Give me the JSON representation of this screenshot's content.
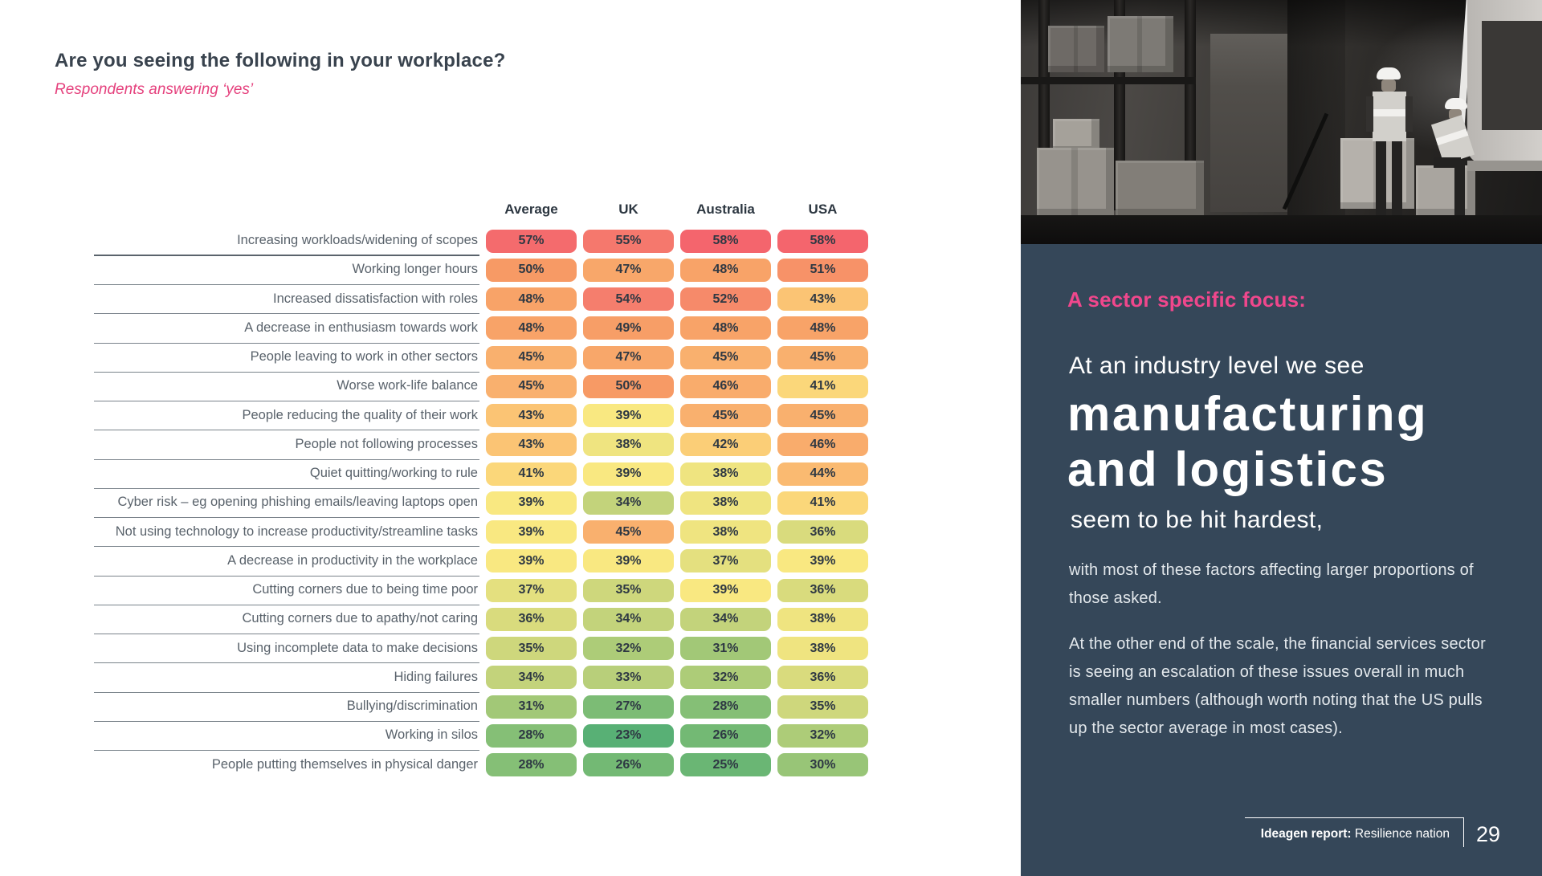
{
  "survey": {
    "title": "Are you seeing the following in your workplace?",
    "subtitle": "Respondents answering ‘yes’"
  },
  "chart_data": {
    "type": "heatmap",
    "title": "Are you seeing the following in your workplace?",
    "subtitle": "Respondents answering ‘yes’",
    "value_suffix": "%",
    "columns": [
      "Average",
      "UK",
      "Australia",
      "USA"
    ],
    "rows": [
      {
        "label": "Increasing workloads/widening of scopes",
        "values": [
          57,
          55,
          58,
          58
        ]
      },
      {
        "label": "Working longer hours",
        "values": [
          50,
          47,
          48,
          51
        ]
      },
      {
        "label": "Increased dissatisfaction with roles",
        "values": [
          48,
          54,
          52,
          43
        ]
      },
      {
        "label": "A decrease in enthusiasm towards work",
        "values": [
          48,
          49,
          48,
          48
        ]
      },
      {
        "label": "People leaving to work in other sectors",
        "values": [
          45,
          47,
          45,
          45
        ]
      },
      {
        "label": "Worse work-life balance",
        "values": [
          45,
          50,
          46,
          41
        ]
      },
      {
        "label": "People reducing the quality of their work",
        "values": [
          43,
          39,
          45,
          45
        ]
      },
      {
        "label": "People not following processes",
        "values": [
          43,
          38,
          42,
          46
        ]
      },
      {
        "label": "Quiet quitting/working to rule",
        "values": [
          41,
          39,
          38,
          44
        ]
      },
      {
        "label": "Cyber risk – eg opening phishing emails/leaving laptops open",
        "values": [
          39,
          34,
          38,
          41
        ]
      },
      {
        "label": "Not using technology to increase productivity/streamline tasks",
        "values": [
          39,
          45,
          38,
          36
        ]
      },
      {
        "label": "A decrease in productivity in the workplace",
        "values": [
          39,
          39,
          37,
          39
        ]
      },
      {
        "label": "Cutting corners due to being time poor",
        "values": [
          37,
          35,
          39,
          36
        ]
      },
      {
        "label": "Cutting corners due to apathy/not caring",
        "values": [
          36,
          34,
          34,
          38
        ]
      },
      {
        "label": "Using incomplete data to make decisions",
        "values": [
          35,
          32,
          31,
          38
        ]
      },
      {
        "label": "Hiding failures",
        "values": [
          34,
          33,
          32,
          36
        ]
      },
      {
        "label": "Bullying/discrimination",
        "values": [
          31,
          27,
          28,
          35
        ]
      },
      {
        "label": "Working in silos",
        "values": [
          28,
          23,
          26,
          32
        ]
      },
      {
        "label": "People putting themselves in physical danger",
        "values": [
          28,
          26,
          25,
          30
        ]
      }
    ],
    "color_scale": [
      {
        "value": 23,
        "color": "#58b075"
      },
      {
        "value": 26,
        "color": "#73b974"
      },
      {
        "value": 28,
        "color": "#85bf76"
      },
      {
        "value": 31,
        "color": "#a2c877"
      },
      {
        "value": 34,
        "color": "#c3d37b"
      },
      {
        "value": 36,
        "color": "#d9db7d"
      },
      {
        "value": 38,
        "color": "#efe480"
      },
      {
        "value": 39,
        "color": "#f9e881"
      },
      {
        "value": 41,
        "color": "#fbd77a"
      },
      {
        "value": 43,
        "color": "#fbc474"
      },
      {
        "value": 45,
        "color": "#f9b06e"
      },
      {
        "value": 47,
        "color": "#f8a76a"
      },
      {
        "value": 50,
        "color": "#f79a65"
      },
      {
        "value": 52,
        "color": "#f68a6a"
      },
      {
        "value": 54,
        "color": "#f57e6d"
      },
      {
        "value": 58,
        "color": "#f4656d"
      }
    ],
    "legend_position": "none",
    "grid": "row-separators-under-labels"
  },
  "side_panel": {
    "eyebrow": "A sector specific focus:",
    "lead_top": "At an industry level we see",
    "headline_line_1": "manufacturing",
    "headline_line_2": "and logistics",
    "lead_bottom": "seem to be hit hardest,",
    "para_1": "with most of these factors affecting larger proportions of those asked.",
    "para_2": "At the other end of the scale, the financial services sector is seeing an escalation of these issues overall in much smaller numbers (although worth noting that the US pulls up the sector average in most cases).",
    "footer": {
      "report_label_bold": "Ideagen report:",
      "report_label": " Resilience nation",
      "page_number": "29"
    }
  },
  "colors": {
    "accent_pink_subtitle": "#e5417d",
    "accent_pink_eyebrow": "#f0478c",
    "panel_background": "#354759",
    "title_navy": "#39434e",
    "pill_text": "#2e3843"
  }
}
